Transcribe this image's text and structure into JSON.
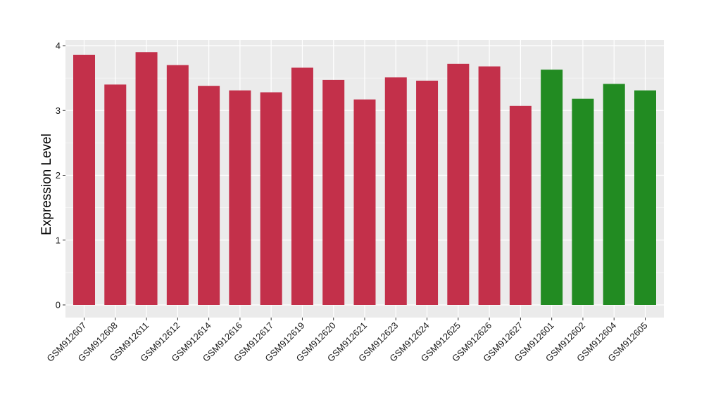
{
  "chart_data": {
    "type": "bar",
    "title": "",
    "xlabel": "",
    "ylabel": "Expression Level",
    "ylim": [
      -0.2,
      4.08
    ],
    "yticks": [
      0,
      1,
      2,
      3,
      4
    ],
    "grid": true,
    "legend": "none",
    "categories": [
      "GSM912607",
      "GSM912608",
      "GSM912611",
      "GSM912612",
      "GSM912614",
      "GSM912616",
      "GSM912617",
      "GSM912619",
      "GSM912620",
      "GSM912621",
      "GSM912623",
      "GSM912624",
      "GSM912625",
      "GSM912626",
      "GSM912627",
      "GSM912601",
      "GSM912602",
      "GSM912604",
      "GSM912605"
    ],
    "values": [
      3.86,
      3.4,
      3.9,
      3.7,
      3.38,
      3.31,
      3.28,
      3.66,
      3.47,
      3.17,
      3.51,
      3.46,
      3.72,
      3.68,
      3.07,
      3.63,
      3.18,
      3.41,
      3.31
    ],
    "groups": [
      "a",
      "a",
      "a",
      "a",
      "a",
      "a",
      "a",
      "a",
      "a",
      "a",
      "a",
      "a",
      "a",
      "a",
      "a",
      "b",
      "b",
      "b",
      "b"
    ],
    "colors": {
      "a": "#c3304a",
      "b": "#228b22"
    },
    "panel_background": "#ebebeb",
    "gridline_color": "#ffffff"
  }
}
